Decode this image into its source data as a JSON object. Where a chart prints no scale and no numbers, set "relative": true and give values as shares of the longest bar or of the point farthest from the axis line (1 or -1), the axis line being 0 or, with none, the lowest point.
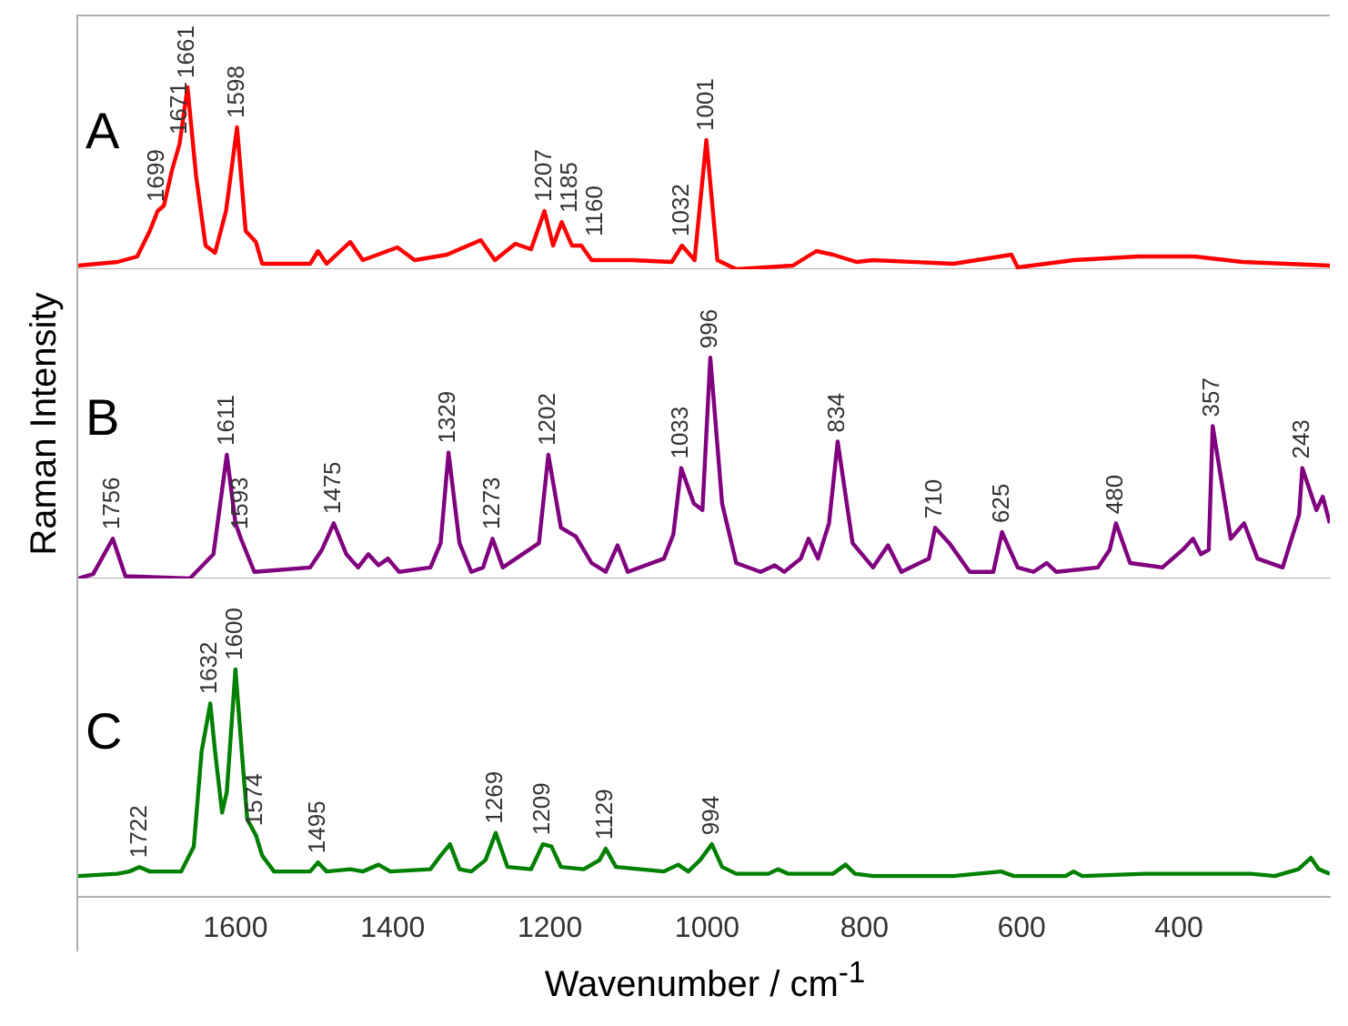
{
  "chart_data": [
    {
      "type": "line",
      "relative": true,
      "xlim": [
        1800,
        208
      ],
      "xticks": [
        1600,
        1400,
        1200,
        1000,
        800,
        600,
        400
      ],
      "tick_labels": false,
      "grid": false,
      "legend": false,
      "marker": "none",
      "line_style": "solid",
      "series": [
        {
          "name": "A",
          "color": "#ff0000",
          "x": [
            1800,
            1750,
            1725,
            1709,
            1699,
            1691,
            1681,
            1671,
            1661,
            1650,
            1638,
            1626,
            1612,
            1598,
            1587,
            1574,
            1566,
            1505,
            1495,
            1484,
            1454,
            1438,
            1394,
            1372,
            1331,
            1288,
            1270,
            1244,
            1224,
            1207,
            1196,
            1185,
            1172,
            1160,
            1147,
            1096,
            1045,
            1032,
            1016,
            1001,
            987,
            963,
            891,
            861,
            840,
            810,
            789,
            687,
            613,
            605,
            534,
            452,
            380,
            319,
            208
          ],
          "values": [
            0.02,
            0.04,
            0.07,
            0.21,
            0.32,
            0.35,
            0.54,
            0.69,
            1,
            0.51,
            0.13,
            0.09,
            0.32,
            0.78,
            0.21,
            0.15,
            0.03,
            0.03,
            0.1,
            0.03,
            0.15,
            0.05,
            0.12,
            0.05,
            0.08,
            0.16,
            0.05,
            0.14,
            0.11,
            0.32,
            0.13,
            0.26,
            0.13,
            0.13,
            0.05,
            0.05,
            0.04,
            0.13,
            0.05,
            0.71,
            0.05,
            0,
            0.02,
            0.1,
            0.08,
            0.04,
            0.05,
            0.03,
            0.08,
            0.01,
            0.05,
            0.07,
            0.07,
            0.04,
            0.02
          ]
        }
      ],
      "annotations": [
        {
          "text": "1699",
          "x": 1699,
          "y": 0.32
        },
        {
          "text": "1671",
          "x": 1671,
          "y": 0.69
        },
        {
          "text": "1661",
          "x": 1661,
          "y": 1
        },
        {
          "text": "1598",
          "x": 1598,
          "y": 0.78
        },
        {
          "text": "1207",
          "x": 1207,
          "y": 0.32
        },
        {
          "text": "1185",
          "x": 1185,
          "y": 0.26
        },
        {
          "text": "1160",
          "x": 1160,
          "y": 0.13
        },
        {
          "text": "1032",
          "x": 1032,
          "y": 0.13
        },
        {
          "text": "1001",
          "x": 1001,
          "y": 0.71
        }
      ]
    },
    {
      "type": "line",
      "relative": true,
      "ylabel": "Raman Intensity",
      "xlim": [
        1800,
        208
      ],
      "xticks": [
        1600,
        1400,
        1200,
        1000,
        800,
        600,
        400
      ],
      "tick_labels": false,
      "grid": false,
      "legend": false,
      "marker": "none",
      "line_style": "solid",
      "series": [
        {
          "name": "B",
          "color": "#800080",
          "x": [
            1800,
            1781,
            1756,
            1740,
            1658,
            1628,
            1611,
            1600,
            1593,
            1576,
            1505,
            1490,
            1475,
            1459,
            1444,
            1431,
            1418,
            1406,
            1392,
            1352,
            1339,
            1329,
            1315,
            1300,
            1285,
            1273,
            1260,
            1214,
            1202,
            1186,
            1167,
            1147,
            1129,
            1114,
            1101,
            1055,
            1043,
            1033,
            1017,
            1006,
            996,
            981,
            963,
            932,
            914,
            902,
            881,
            871,
            859,
            845,
            834,
            815,
            789,
            770,
            753,
            718,
            710,
            692,
            666,
            636,
            625,
            605,
            585,
            568,
            556,
            503,
            488,
            480,
            462,
            421,
            395,
            382,
            372,
            362,
            357,
            334,
            317,
            300,
            268,
            247,
            243,
            225,
            217,
            208
          ],
          "values": [
            0,
            0.02,
            0.18,
            0.01,
            0,
            0.11,
            0.56,
            0.25,
            0.18,
            0.03,
            0.05,
            0.13,
            0.25,
            0.11,
            0.05,
            0.11,
            0.06,
            0.09,
            0.03,
            0.05,
            0.16,
            0.57,
            0.16,
            0.03,
            0.05,
            0.18,
            0.05,
            0.16,
            0.56,
            0.23,
            0.19,
            0.07,
            0.03,
            0.15,
            0.03,
            0.09,
            0.2,
            0.5,
            0.34,
            0.31,
            1,
            0.34,
            0.07,
            0.03,
            0.06,
            0.03,
            0.09,
            0.18,
            0.09,
            0.25,
            0.62,
            0.16,
            0.05,
            0.15,
            0.03,
            0.09,
            0.23,
            0.16,
            0.03,
            0.03,
            0.21,
            0.05,
            0.03,
            0.07,
            0.03,
            0.05,
            0.13,
            0.25,
            0.07,
            0.05,
            0.13,
            0.18,
            0.11,
            0.13,
            0.69,
            0.18,
            0.25,
            0.09,
            0.05,
            0.29,
            0.5,
            0.31,
            0.37,
            0.25
          ]
        }
      ],
      "annotations": [
        {
          "text": "1756",
          "x": 1756,
          "y": 0.18
        },
        {
          "text": "1611",
          "x": 1611,
          "y": 0.56
        },
        {
          "text": "1593",
          "x": 1593,
          "y": 0.18
        },
        {
          "text": "1475",
          "x": 1475,
          "y": 0.25
        },
        {
          "text": "1329",
          "x": 1329,
          "y": 0.57
        },
        {
          "text": "1273",
          "x": 1273,
          "y": 0.18
        },
        {
          "text": "1202",
          "x": 1202,
          "y": 0.56
        },
        {
          "text": "1033",
          "x": 1033,
          "y": 0.5
        },
        {
          "text": "996",
          "x": 996,
          "y": 1
        },
        {
          "text": "834",
          "x": 834,
          "y": 0.62
        },
        {
          "text": "710",
          "x": 710,
          "y": 0.23
        },
        {
          "text": "625",
          "x": 625,
          "y": 0.21
        },
        {
          "text": "480",
          "x": 480,
          "y": 0.25
        },
        {
          "text": "357",
          "x": 357,
          "y": 0.69
        },
        {
          "text": "243",
          "x": 243,
          "y": 0.5
        }
      ]
    },
    {
      "type": "line",
      "relative": true,
      "xlabel": "Wavenumber / cm$^{-1}$",
      "xlim": [
        1800,
        208
      ],
      "xticks": [
        1600,
        1400,
        1200,
        1000,
        800,
        600,
        400
      ],
      "tick_labels": "x",
      "grid": false,
      "legend": false,
      "marker": "none",
      "line_style": "solid",
      "series": [
        {
          "name": "C",
          "color": "#008000",
          "x": [
            1800,
            1750,
            1735,
            1722,
            1709,
            1669,
            1653,
            1643,
            1632,
            1626,
            1617,
            1611,
            1600,
            1592,
            1585,
            1574,
            1566,
            1551,
            1505,
            1495,
            1484,
            1454,
            1438,
            1418,
            1403,
            1352,
            1339,
            1327,
            1315,
            1300,
            1282,
            1269,
            1254,
            1224,
            1209,
            1198,
            1186,
            1157,
            1137,
            1129,
            1116,
            1055,
            1037,
            1024,
            1009,
            994,
            981,
            963,
            922,
            910,
            897,
            840,
            824,
            812,
            789,
            687,
            626,
            610,
            544,
            534,
            523,
            442,
            360,
            309,
            278,
            248,
            232,
            222,
            208
          ],
          "values": [
            0.09,
            0.1,
            0.11,
            0.13,
            0.11,
            0.11,
            0.22,
            0.64,
            0.85,
            0.64,
            0.37,
            0.46,
            1,
            0.64,
            0.34,
            0.27,
            0.18,
            0.11,
            0.11,
            0.15,
            0.11,
            0.12,
            0.11,
            0.14,
            0.11,
            0.12,
            0.18,
            0.23,
            0.12,
            0.11,
            0.16,
            0.28,
            0.13,
            0.12,
            0.23,
            0.22,
            0.13,
            0.12,
            0.16,
            0.21,
            0.13,
            0.11,
            0.14,
            0.11,
            0.16,
            0.23,
            0.13,
            0.1,
            0.1,
            0.12,
            0.1,
            0.1,
            0.14,
            0.1,
            0.09,
            0.09,
            0.11,
            0.09,
            0.09,
            0.11,
            0.09,
            0.1,
            0.1,
            0.1,
            0.09,
            0.12,
            0.17,
            0.12,
            0.1
          ]
        }
      ],
      "annotations": [
        {
          "text": "1722",
          "x": 1722,
          "y": 0.13
        },
        {
          "text": "1632",
          "x": 1632,
          "y": 0.85
        },
        {
          "text": "1600",
          "x": 1600,
          "y": 1
        },
        {
          "text": "1574",
          "x": 1574,
          "y": 0.27
        },
        {
          "text": "1495",
          "x": 1495,
          "y": 0.15
        },
        {
          "text": "1269",
          "x": 1269,
          "y": 0.28
        },
        {
          "text": "1209",
          "x": 1209,
          "y": 0.23
        },
        {
          "text": "1129",
          "x": 1129,
          "y": 0.21
        },
        {
          "text": "994",
          "x": 994,
          "y": 0.23
        }
      ]
    }
  ]
}
